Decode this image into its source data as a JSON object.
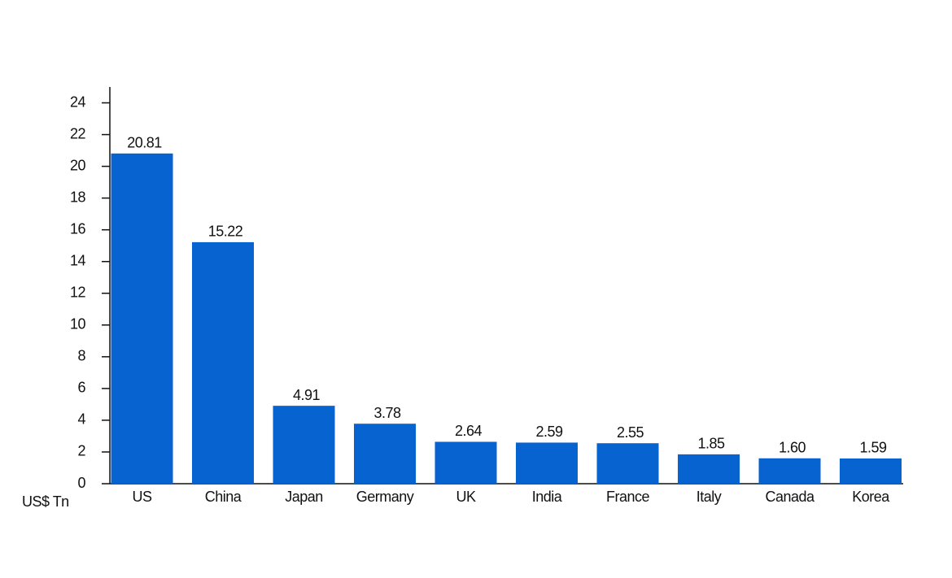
{
  "chart_data": {
    "type": "bar",
    "y_label": "US$ Tn",
    "categories": [
      "US",
      "China",
      "Japan",
      "Germany",
      "UK",
      "India",
      "France",
      "Italy",
      "Canada",
      "Korea"
    ],
    "values": [
      20.81,
      15.22,
      4.91,
      3.78,
      2.64,
      2.59,
      2.55,
      1.85,
      1.6,
      1.59
    ],
    "value_labels": [
      "20.81",
      "15.22",
      "4.91",
      "3.78",
      "2.64",
      "2.59",
      "2.55",
      "1.85",
      "1.60",
      "1.59"
    ],
    "color": "#0763cf",
    "ylim": [
      0,
      25
    ],
    "yticks": [
      0,
      2,
      4,
      6,
      8,
      10,
      12,
      14,
      16,
      18,
      20,
      22,
      24
    ],
    "grid": false
  }
}
